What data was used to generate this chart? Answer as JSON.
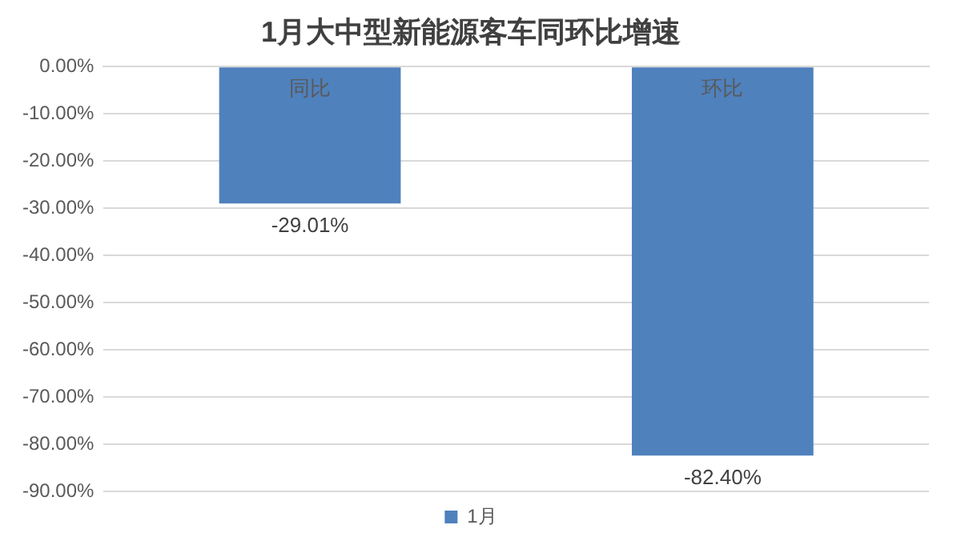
{
  "chart_data": {
    "type": "bar",
    "title": "1月大中型新能源客车同环比增速",
    "categories": [
      "同比",
      "环比"
    ],
    "series": [
      {
        "name": "1月",
        "color": "#4f81bd",
        "values": [
          -29.01,
          -82.4
        ],
        "value_labels": [
          "-29.01%",
          "-82.40%"
        ]
      }
    ],
    "ylim": [
      -90,
      0
    ],
    "yticks": [
      {
        "value": 0,
        "label": "0.00%"
      },
      {
        "value": -10,
        "label": "-10.00%"
      },
      {
        "value": -20,
        "label": "-20.00%"
      },
      {
        "value": -30,
        "label": "-30.00%"
      },
      {
        "value": -40,
        "label": "-40.00%"
      },
      {
        "value": -50,
        "label": "-50.00%"
      },
      {
        "value": -60,
        "label": "-60.00%"
      },
      {
        "value": -70,
        "label": "-70.00%"
      },
      {
        "value": -80,
        "label": "-80.00%"
      },
      {
        "value": -90,
        "label": "-90.00%"
      }
    ],
    "grid": "y",
    "legend": "bottom"
  }
}
